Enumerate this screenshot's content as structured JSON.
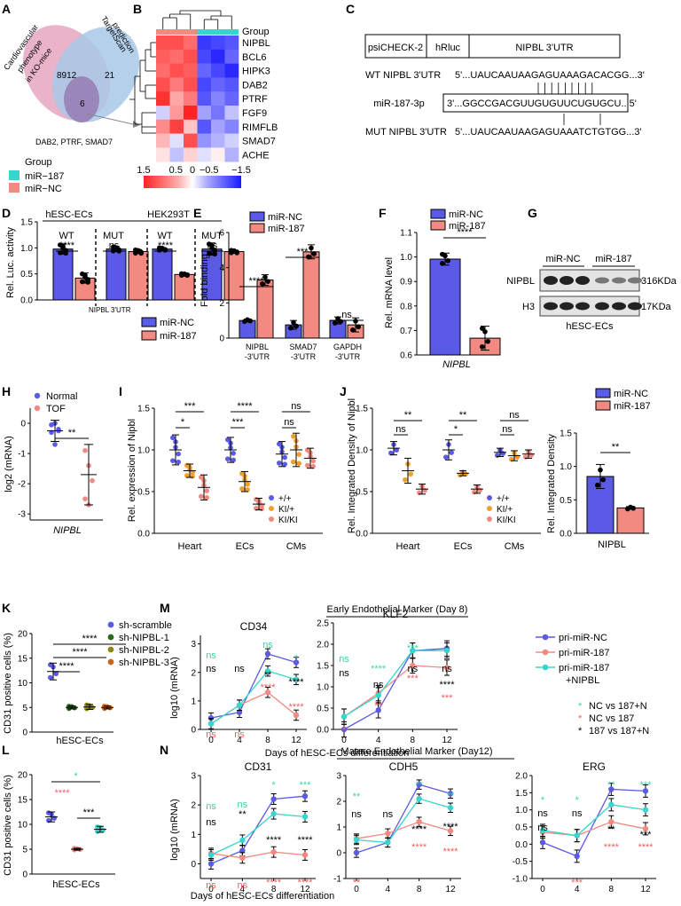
{
  "figure": {
    "panel_letters": [
      "A",
      "B",
      "C",
      "D",
      "E",
      "F",
      "G",
      "H",
      "I",
      "J",
      "K",
      "M",
      "L",
      "N"
    ],
    "colors": {
      "blue": "#5a5ae6",
      "salmon": "#f28a82",
      "cyan": "#36d6cc",
      "grey": "#9ad4cc",
      "ns_cyan": "#36d6a8",
      "darkred": "#e04040"
    },
    "A": {
      "ellipse1": "Cardiovascular phenotype in KO-mice",
      "ellipse1_lines": [
        "Cardiovascular",
        "phenotype",
        "in KO-mice"
      ],
      "ellipse2_lines": [
        "TargetScan",
        "prediction"
      ],
      "n1": "8912",
      "n2": "21",
      "n_overlap": "6",
      "genes": "DAB2, PTRF, SMAD7",
      "legend_title": "Group",
      "legend": [
        "miR−187",
        "miR−NC"
      ]
    },
    "B": {
      "group_label": "Group",
      "genes": [
        "NIPBL",
        "BCL6",
        "HIPK3",
        "DAB2",
        "PTRF",
        "FGF9",
        "RIMFLB",
        "SMAD7",
        "ACHE"
      ],
      "scale_ticks": [
        "1.5",
        "0.5",
        "0",
        "−0.5",
        "−1.5"
      ],
      "matrix": [
        [
          1.2,
          1.2,
          1.0,
          -1.3,
          -1.2,
          -1.1
        ],
        [
          1.1,
          1.0,
          1.2,
          -1.2,
          -1.4,
          -1.0
        ],
        [
          1.0,
          1.2,
          1.1,
          -1.0,
          -1.2,
          -1.4
        ],
        [
          1.2,
          0.9,
          1.2,
          -1.2,
          -1.0,
          -1.1
        ],
        [
          1.4,
          0.6,
          0.9,
          -1.1,
          -0.8,
          -1.0
        ],
        [
          -0.3,
          0.7,
          1.5,
          -0.6,
          -0.9,
          -0.4
        ],
        [
          0.8,
          1.3,
          0.4,
          -1.1,
          -0.6,
          -0.8
        ],
        [
          0.5,
          -0.2,
          1.2,
          -0.7,
          -0.5,
          -0.3
        ],
        [
          0.2,
          -0.4,
          0.3,
          -0.2,
          0.1,
          -0.5
        ]
      ]
    },
    "C": {
      "vector_labels": [
        "psiCHECK-2",
        "hRluc",
        "NIPBL 3'UTR"
      ],
      "wt_label": "WT NIPBL 3'UTR",
      "wt_seq": "5'...UAUCAAUAAGAGUAAAGACACGG...3'",
      "mir_label": "miR-187-3p",
      "mir_seq": "3'...GGCCGACGUUGUGUUCUGUGCU...5'",
      "mut_label": "MUT NIPBL 3'UTR",
      "mut_seq": "5'...UAUCAAUAAGAGUAAATCTGTGG...3'"
    },
    "D": {
      "ylabel": "Rel. Luc. activity",
      "groups": [
        "hESC-ECs",
        "HEK293T"
      ],
      "sub": [
        "WT",
        "MUT",
        "WT",
        "MUT"
      ],
      "sig": [
        "****",
        "ns",
        "****",
        "ns"
      ],
      "xlabel": "NIPBL 3'UTR",
      "legend": [
        "miR-NC",
        "miR-187"
      ],
      "yticks": [
        "0.0",
        "0.5",
        "1.0",
        "1.5"
      ]
    },
    "E": {
      "ylabel": "Fold binding",
      "legend": [
        "miR-NC",
        "miR-187"
      ],
      "cats": [
        "NIPBL -3'UTR",
        "SMAD7 -3'UTR",
        "GAPDH -3'UTR"
      ],
      "cat_lines": [
        [
          "NIPBL",
          "-3'UTR"
        ],
        [
          "SMAD7",
          "-3'UTR"
        ],
        [
          "GAPDH",
          "-3'UTR"
        ]
      ],
      "sig": [
        "****",
        "***",
        "ns"
      ],
      "yticks": [
        "0",
        "2",
        "4",
        "6"
      ]
    },
    "F": {
      "ylabel": "Rel. mRNA level",
      "legend": [
        "miR-NC",
        "miR-187"
      ],
      "sig": "****",
      "xlabel": "NIPBL",
      "yticks": [
        "0.6",
        "0.7",
        "0.8",
        "0.9",
        "1.0",
        "1.1"
      ]
    },
    "G": {
      "groups": [
        "miR-NC",
        "miR-187"
      ],
      "rows": [
        "NIPBL",
        "H3"
      ],
      "sizes": [
        "316KDa",
        "17KDa"
      ],
      "caption": "hESC-ECs"
    },
    "H": {
      "ylabel": "log2 (mRNA)",
      "legend": [
        "Normal",
        "TOF"
      ],
      "sig": "**",
      "xlabel": "NIPBL",
      "yticks": [
        "0",
        "-1",
        "-2",
        "-3"
      ]
    },
    "I": {
      "ylabel": "Rel. expression of Nipbl",
      "cats": [
        "Heart",
        "ECs",
        "CMs"
      ],
      "legend": [
        "+/+",
        "KI/+",
        "KI/KI"
      ],
      "sig": [
        "***",
        "*",
        "****",
        "***",
        "ns",
        "ns"
      ],
      "yticks": [
        "0.0",
        "0.5",
        "1.0",
        "1.5"
      ]
    },
    "J": {
      "ylabel": "Rel. Integrated Density of Nipbl",
      "cats": [
        "Heart",
        "ECs",
        "CMs"
      ],
      "legend": [
        "+/+",
        "KI/+",
        "KI/KI"
      ],
      "sig": [
        "**",
        "ns",
        "**",
        "*",
        "ns",
        "ns"
      ],
      "yticks": [
        "0.0",
        "0.5",
        "1.0",
        "1.5"
      ]
    },
    "J2": {
      "ylabel": "Rel. Integrated Density",
      "legend": [
        "miR-NC",
        "miR-187"
      ],
      "sig": "**",
      "xlabel": "NIPBL",
      "yticks": [
        "0.0",
        "0.5",
        "1.0",
        "1.5"
      ]
    },
    "K": {
      "ylabel": "CD31 positive cells (%)",
      "xlabel": "hESC-ECs",
      "legend": [
        "sh-scramble",
        "sh-NIPBL-1",
        "sh-NIPBL-2",
        "sh-NIPBL-3"
      ],
      "sig": [
        "****",
        "****",
        "****"
      ],
      "yticks": [
        "0",
        "5",
        "10",
        "15",
        "20"
      ]
    },
    "M": {
      "header": "Early Endothelial Marker (Day 8)",
      "titles": [
        "CD34",
        "KLF2"
      ],
      "ylabel": "log10 (mRNA)",
      "xlabel": "Days of hESC-ECs differentiation",
      "xticks": [
        "0",
        "4",
        "8",
        "12"
      ],
      "legend": [
        "pri-miR-NC",
        "pri-miR-187",
        "pri-miR-187 +NIPBL"
      ],
      "legend3_lines": [
        "pri-miR-187",
        "+NIPBL"
      ],
      "comparisons": [
        {
          "sym": "*",
          "text": "NC vs  187+N"
        },
        {
          "sym": "*",
          "text": "NC vs 187"
        },
        {
          "sym": "*",
          "text": "187 vs 187+N"
        }
      ],
      "yticks": [
        "0",
        "1",
        "2",
        "3"
      ],
      "yticks2": [
        "0.0",
        "0.5",
        "1.0",
        "1.5",
        "2.0",
        "2.5"
      ]
    },
    "L": {
      "ylabel": "CD31 positive cells (%)",
      "xlabel": "hESC-ECs",
      "sig": [
        "*",
        "****",
        "***"
      ],
      "yticks": [
        "0",
        "5",
        "10",
        "15",
        "20"
      ]
    },
    "N": {
      "header": "Mature Endothelial Marker (Day12)",
      "titles": [
        "CD31",
        "CDH5",
        "ERG"
      ],
      "ylabel": "log10 (mRNA)",
      "xlabel": "Days of hESC-ECs differentiation",
      "xticks": [
        "0",
        "4",
        "8",
        "12"
      ],
      "yticksA": [
        "0",
        "1",
        "2",
        "3"
      ],
      "yticksB": [
        "-1",
        "0",
        "1",
        "2",
        "3"
      ],
      "yticksC": [
        "-1.0",
        "-0.5",
        "0.0",
        "0.5",
        "1.0",
        "1.5",
        "2.0"
      ]
    }
  },
  "chart_data": [
    {
      "panel": "D",
      "type": "bar",
      "title": "",
      "ylabel": "Rel. Luc. activity",
      "xlabel": "NIPBL 3'UTR",
      "ylim": [
        0,
        1.5
      ],
      "categories": [
        "hESC-ECs WT",
        "hESC-ECs MUT",
        "HEK293T WT",
        "HEK293T MUT"
      ],
      "series": [
        {
          "name": "miR-NC",
          "values": [
            1.0,
            1.0,
            1.0,
            1.0
          ],
          "err": [
            0.1,
            0.05,
            0.03,
            0.12
          ]
        },
        {
          "name": "miR-187",
          "values": [
            0.43,
            0.95,
            0.5,
            0.95
          ],
          "err": [
            0.1,
            0.04,
            0.02,
            0.03
          ]
        }
      ]
    },
    {
      "panel": "E",
      "type": "bar",
      "ylabel": "Fold binding",
      "ylim": [
        0,
        6
      ],
      "categories": [
        "NIPBL -3'UTR",
        "SMAD7 -3'UTR",
        "GAPDH -3'UTR"
      ],
      "series": [
        {
          "name": "miR-NC",
          "values": [
            1.0,
            0.75,
            1.0
          ],
          "err": [
            0.08,
            0.25,
            0.2
          ]
        },
        {
          "name": "miR-187",
          "values": [
            3.3,
            4.9,
            0.75
          ],
          "err": [
            0.3,
            0.4,
            0.4
          ]
        }
      ]
    },
    {
      "panel": "F",
      "type": "bar",
      "ylabel": "Rel. mRNA level",
      "ylim": [
        0.6,
        1.1
      ],
      "categories": [
        "NIPBL"
      ],
      "series": [
        {
          "name": "miR-NC",
          "values": [
            1.0
          ],
          "err": [
            0.025
          ]
        },
        {
          "name": "miR-187",
          "values": [
            0.67
          ],
          "err": [
            0.05
          ]
        }
      ]
    },
    {
      "panel": "H",
      "type": "scatter",
      "ylabel": "log2 (mRNA)",
      "ylim": [
        -3,
        0.5
      ],
      "categories": [
        "Normal",
        "TOF"
      ],
      "series": [
        {
          "name": "Normal",
          "mean": -0.25,
          "sd": 0.35,
          "points": [
            -0.05,
            0.0,
            -0.2,
            -0.3,
            -0.7,
            -0.25
          ]
        },
        {
          "name": "TOF",
          "mean": -1.7,
          "sd": 1.0,
          "points": [
            -0.9,
            -1.4,
            -1.9,
            -2.5,
            -2.7
          ]
        }
      ]
    },
    {
      "panel": "I",
      "type": "scatter",
      "ylabel": "Rel. expression of Nipbl",
      "ylim": [
        0,
        1.5
      ],
      "categories": [
        "Heart",
        "ECs",
        "CMs"
      ],
      "series": [
        {
          "name": "+/+",
          "means": [
            1.0,
            1.0,
            0.95
          ],
          "sd": [
            0.18,
            0.15,
            0.15
          ]
        },
        {
          "name": "KI/+",
          "means": [
            0.75,
            0.62,
            1.0
          ],
          "sd": [
            0.08,
            0.12,
            0.2
          ]
        },
        {
          "name": "KI/KI",
          "means": [
            0.55,
            0.35,
            0.9
          ],
          "sd": [
            0.15,
            0.07,
            0.12
          ]
        }
      ]
    },
    {
      "panel": "J",
      "type": "scatter",
      "ylabel": "Rel. Integrated Density of Nipbl",
      "ylim": [
        0,
        1.5
      ],
      "categories": [
        "Heart",
        "ECs",
        "CMs"
      ],
      "series": [
        {
          "name": "+/+",
          "means": [
            1.02,
            1.0,
            0.97
          ],
          "sd": [
            0.08,
            0.12,
            0.05
          ]
        },
        {
          "name": "KI/+",
          "means": [
            0.75,
            0.72,
            0.93
          ],
          "sd": [
            0.15,
            0.03,
            0.06
          ]
        },
        {
          "name": "KI/KI",
          "means": [
            0.53,
            0.53,
            0.95
          ],
          "sd": [
            0.06,
            0.05,
            0.05
          ]
        }
      ]
    },
    {
      "panel": "J2",
      "type": "bar",
      "ylabel": "Rel. Integrated Density",
      "ylim": [
        0,
        1.5
      ],
      "categories": [
        "NIPBL"
      ],
      "series": [
        {
          "name": "miR-NC",
          "values": [
            0.85
          ],
          "err": [
            0.18
          ]
        },
        {
          "name": "miR-187",
          "values": [
            0.38
          ],
          "err": [
            0.02
          ]
        }
      ]
    },
    {
      "panel": "K",
      "type": "scatter",
      "ylabel": "CD31 positive cells (%)",
      "ylim": [
        0,
        20
      ],
      "categories": [
        "sh-scramble",
        "sh-NIPBL-1",
        "sh-NIPBL-2",
        "sh-NIPBL-3"
      ],
      "series": [
        {
          "name": "CD31",
          "means": [
            12.3,
            5.0,
            5.1,
            5.0
          ],
          "sd": [
            1.7,
            0.3,
            0.5,
            0.3
          ]
        }
      ]
    },
    {
      "panel": "L",
      "type": "scatter",
      "ylabel": "CD31 positive cells (%)",
      "ylim": [
        0,
        20
      ],
      "categories": [
        "pri-miR-NC",
        "pri-miR-187",
        "pri-miR-187 +NIPBL"
      ],
      "series": [
        {
          "name": "CD31",
          "means": [
            11.5,
            5.0,
            9.0
          ],
          "sd": [
            1.0,
            0.2,
            0.6
          ]
        }
      ]
    },
    {
      "panel": "M",
      "title": "CD34",
      "type": "line",
      "ylim": [
        0,
        3.3
      ],
      "x": [
        0,
        4,
        8,
        12
      ],
      "series": [
        {
          "name": "pri-miR-NC",
          "values": [
            0.4,
            0.6,
            2.65,
            2.35
          ]
        },
        {
          "name": "pri-miR-187",
          "values": [
            0.2,
            0.85,
            1.3,
            0.5
          ]
        },
        {
          "name": "pri-miR-187 +NIPBL",
          "values": [
            0.2,
            0.85,
            2.05,
            1.75
          ]
        }
      ]
    },
    {
      "panel": "M",
      "title": "KLF2",
      "type": "line",
      "ylim": [
        0,
        2.5
      ],
      "x": [
        0,
        4,
        8,
        12
      ],
      "series": [
        {
          "name": "pri-miR-NC",
          "values": [
            0.0,
            0.45,
            1.85,
            1.9
          ]
        },
        {
          "name": "pri-miR-187",
          "values": [
            0.3,
            0.85,
            1.5,
            1.45
          ]
        },
        {
          "name": "pri-miR-187 +NIPBL",
          "values": [
            0.3,
            0.8,
            1.85,
            1.85
          ]
        }
      ]
    },
    {
      "panel": "N",
      "title": "CD31",
      "type": "line",
      "ylim": [
        -0.5,
        3
      ],
      "x": [
        0,
        4,
        8,
        12
      ],
      "series": [
        {
          "name": "pri-miR-NC",
          "values": [
            0.0,
            0.45,
            2.2,
            2.3
          ]
        },
        {
          "name": "pri-miR-187",
          "values": [
            0.35,
            0.2,
            0.4,
            0.3
          ]
        },
        {
          "name": "pri-miR-187 +NIPBL",
          "values": [
            0.3,
            0.8,
            1.7,
            1.6
          ]
        }
      ]
    },
    {
      "panel": "N",
      "title": "CDH5",
      "type": "line",
      "ylim": [
        -1,
        3
      ],
      "x": [
        0,
        4,
        8,
        12
      ],
      "series": [
        {
          "name": "pri-miR-NC",
          "values": [
            0.0,
            0.4,
            2.65,
            2.3
          ]
        },
        {
          "name": "pri-miR-187",
          "values": [
            0.55,
            0.75,
            1.2,
            0.85
          ]
        },
        {
          "name": "pri-miR-187 +NIPBL",
          "values": [
            0.5,
            0.4,
            2.1,
            1.75
          ]
        }
      ]
    },
    {
      "panel": "N",
      "title": "ERG",
      "type": "line",
      "ylim": [
        -1,
        2
      ],
      "x": [
        0,
        4,
        8,
        12
      ],
      "series": [
        {
          "name": "pri-miR-NC",
          "values": [
            0.05,
            -0.35,
            1.6,
            1.55
          ]
        },
        {
          "name": "pri-miR-187",
          "values": [
            0.35,
            0.25,
            0.65,
            0.45
          ]
        },
        {
          "name": "pri-miR-187 +NIPBL",
          "values": [
            0.4,
            0.25,
            1.15,
            1.0
          ]
        }
      ]
    }
  ]
}
